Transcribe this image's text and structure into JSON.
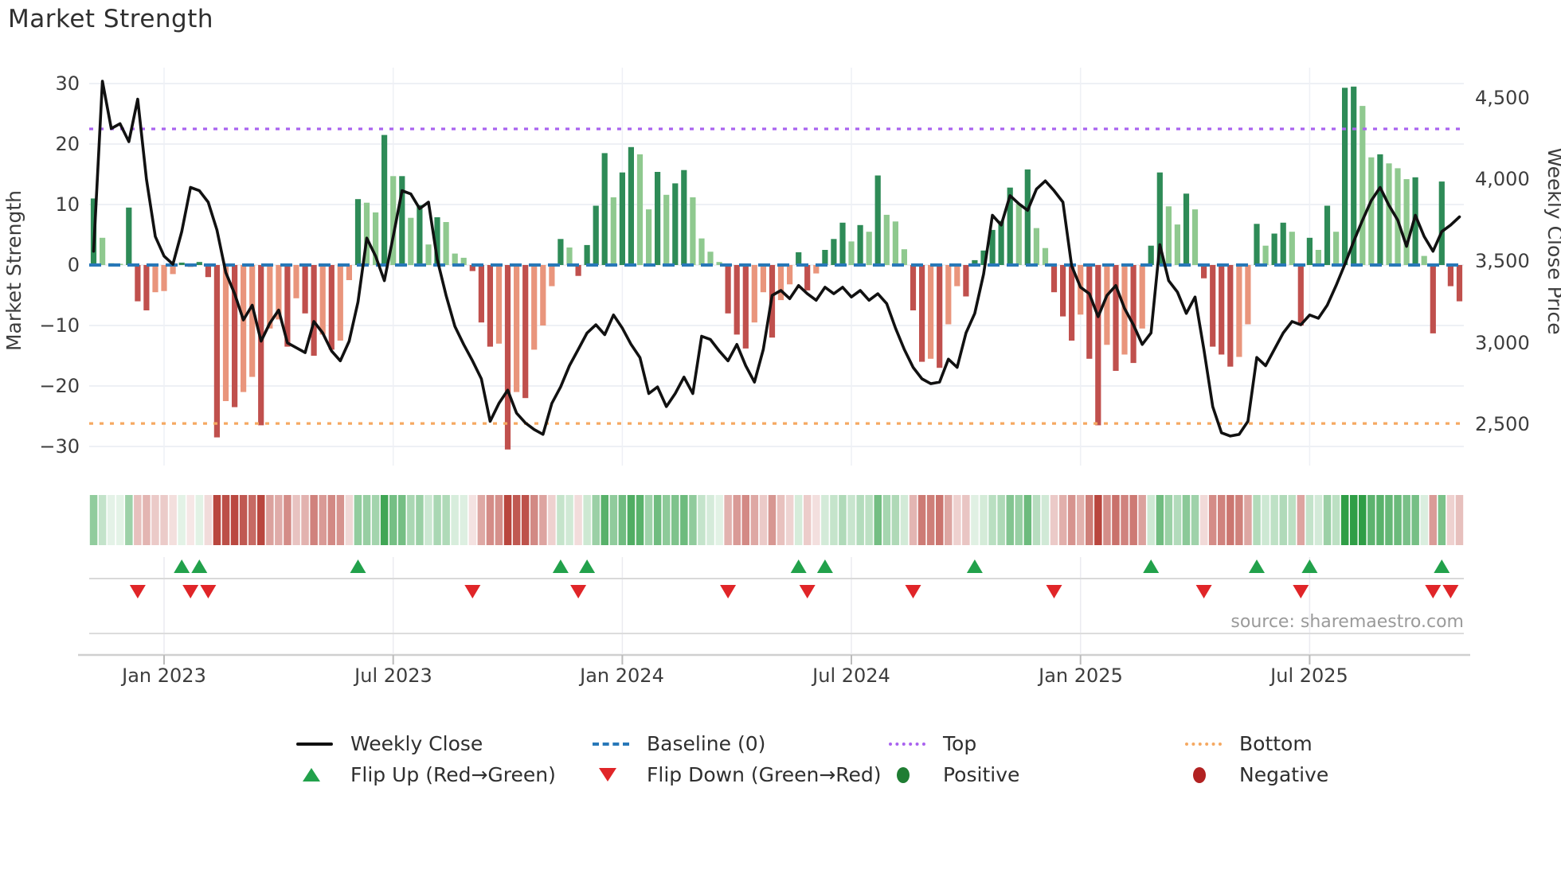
{
  "title": "Market Strength",
  "source": "source: sharemaestro.com",
  "axes": {
    "left_label": "Market Strength",
    "right_label": "Weekly Close Price",
    "left_ticks": [
      "30",
      "20",
      "10",
      "0",
      "−10",
      "−20",
      "−30"
    ],
    "right_ticks": [
      "4,500",
      "4,000",
      "3,500",
      "3,000",
      "2,500"
    ],
    "x_ticks": [
      "Jan 2023",
      "Jul 2023",
      "Jan 2024",
      "Jul 2024",
      "Jan 2025",
      "Jul 2025"
    ]
  },
  "legend": {
    "weekly_close": "Weekly Close",
    "baseline": "Baseline (0)",
    "top": "Top",
    "bottom": "Bottom",
    "flip_up": "Flip Up (Red→Green)",
    "flip_down": "Flip Down (Green→Red)",
    "positive": "Positive",
    "negative": "Negative"
  },
  "colors": {
    "bar_pos_strong": "#2e8b57",
    "bar_pos_soft": "#8fc98f",
    "bar_neg_strong": "#c0504d",
    "bar_neg_soft": "#e9957c",
    "heat_pos": "#2f9e46",
    "heat_neg": "#b9463e",
    "price_line": "#111111",
    "baseline": "#2878b8",
    "top_line": "#a963ef",
    "bottom_line": "#f5a962",
    "flip_up": "#22a14b",
    "flip_down": "#e02528",
    "positive_dot": "#1f7d33",
    "negative_dot": "#b22222",
    "grid": "#e9ebf2"
  },
  "chart_data": {
    "type": "bar",
    "title": "Market Strength",
    "subtitle": "",
    "xlabel": "",
    "x_tick_labels": [
      "Jan 2023",
      "Jul 2023",
      "Jan 2024",
      "Jul 2024",
      "Jan 2025",
      "Jul 2025"
    ],
    "x_tick_week_indices": [
      8,
      34,
      60,
      86,
      112,
      138
    ],
    "left_axis": {
      "label": "Market Strength",
      "range": [
        -33,
        31
      ],
      "gridlines": [
        30,
        20,
        10,
        0,
        -10,
        -20,
        -30
      ]
    },
    "right_axis": {
      "label": "Weekly Close Price",
      "range": [
        2350,
        4680
      ],
      "ticks": [
        4500,
        4000,
        3500,
        3000,
        2500
      ]
    },
    "baseline_value": 0,
    "top_value": 22.5,
    "bottom_value": -26.2,
    "grid": true,
    "legend_position": "bottom",
    "series": [
      {
        "name": "Market Strength",
        "type": "bar",
        "values": [
          11,
          4.5,
          0.3,
          0.2,
          9.5,
          -6,
          -7.5,
          -4.5,
          -4.3,
          -1.5,
          0.4,
          -0.3,
          0.5,
          -2,
          -28.5,
          -22.5,
          -23.5,
          -21,
          -18.5,
          -26.5,
          -10.5,
          -9,
          -13.5,
          -5.5,
          -8,
          -15,
          -11.5,
          -14,
          -12.5,
          -2.5,
          10.9,
          10.3,
          8.7,
          21.5,
          14.7,
          14.7,
          7.8,
          9.9,
          3.4,
          7.9,
          7.1,
          1.9,
          1.2,
          -1,
          -9.5,
          -13.5,
          -13,
          -30.5,
          -21,
          -22,
          -14,
          -10,
          -3.5,
          4.3,
          2.9,
          -1.8,
          3.3,
          9.8,
          18.5,
          11.2,
          15.3,
          19.5,
          18.3,
          9.2,
          15.4,
          11.6,
          13.5,
          15.7,
          11.2,
          4.4,
          2.2,
          0.5,
          -8,
          -11.5,
          -13.8,
          -9.5,
          -4.5,
          -12,
          -5.8,
          -3.2,
          2.1,
          -4.2,
          -1.4,
          2.5,
          4.3,
          7,
          3.9,
          6.6,
          5.5,
          14.8,
          8.3,
          7.2,
          2.6,
          -7.5,
          -16,
          -15.5,
          -17,
          -9.8,
          -3.5,
          -5.2,
          0.8,
          2.4,
          5.8,
          7.3,
          12.8,
          10.1,
          15.8,
          6.1,
          2.8,
          -4.5,
          -8.5,
          -12.5,
          -8.2,
          -15.5,
          -26.5,
          -13.2,
          -17.5,
          -14.8,
          -16.2,
          -10.5,
          3.2,
          15.3,
          9.7,
          6.7,
          11.8,
          9.2,
          -2.2,
          -13.5,
          -14.8,
          -16.8,
          -15.2,
          -9.8,
          6.8,
          3.2,
          5.2,
          7,
          5.5,
          -10,
          4.5,
          2.5,
          9.8,
          5.5,
          29.3,
          29.5,
          26.3,
          17.8,
          18.3,
          16.8,
          16,
          14.2,
          14.5,
          1.5,
          -11.3,
          13.8,
          -3.5,
          -6
        ]
      },
      {
        "name": "Weekly Close",
        "type": "line",
        "values": [
          3560,
          4600,
          4310,
          4340,
          4230,
          4490,
          4000,
          3650,
          3530,
          3480,
          3680,
          3950,
          3930,
          3860,
          3690,
          3430,
          3300,
          3140,
          3230,
          3010,
          3120,
          3200,
          3000,
          2970,
          2940,
          3130,
          3060,
          2950,
          2890,
          3010,
          3250,
          3640,
          3530,
          3380,
          3650,
          3930,
          3910,
          3820,
          3860,
          3510,
          3290,
          3100,
          2990,
          2890,
          2780,
          2520,
          2630,
          2710,
          2570,
          2510,
          2470,
          2440,
          2630,
          2730,
          2860,
          2960,
          3060,
          3110,
          3050,
          3170,
          3090,
          2990,
          2910,
          2690,
          2730,
          2610,
          2690,
          2790,
          2690,
          3040,
          3020,
          2950,
          2890,
          2990,
          2860,
          2760,
          2960,
          3290,
          3320,
          3270,
          3350,
          3300,
          3260,
          3340,
          3300,
          3340,
          3280,
          3320,
          3260,
          3300,
          3240,
          3090,
          2960,
          2850,
          2780,
          2750,
          2760,
          2900,
          2850,
          3060,
          3180,
          3420,
          3780,
          3720,
          3900,
          3850,
          3810,
          3940,
          3990,
          3930,
          3860,
          3470,
          3340,
          3300,
          3160,
          3290,
          3350,
          3210,
          3110,
          2990,
          3060,
          3600,
          3380,
          3310,
          3180,
          3280,
          2960,
          2610,
          2450,
          2430,
          2440,
          2520,
          2910,
          2860,
          2960,
          3060,
          3130,
          3110,
          3170,
          3150,
          3230,
          3350,
          3480,
          3620,
          3750,
          3870,
          3950,
          3840,
          3750,
          3590,
          3780,
          3650,
          3560,
          3680,
          3720,
          3770
        ]
      }
    ],
    "flip_up_weeks": [
      10,
      12,
      30,
      53,
      56,
      80,
      83,
      100,
      120,
      132,
      138,
      153
    ],
    "flip_down_weeks": [
      5,
      11,
      13,
      43,
      55,
      72,
      81,
      93,
      109,
      126,
      137,
      152,
      154
    ]
  }
}
